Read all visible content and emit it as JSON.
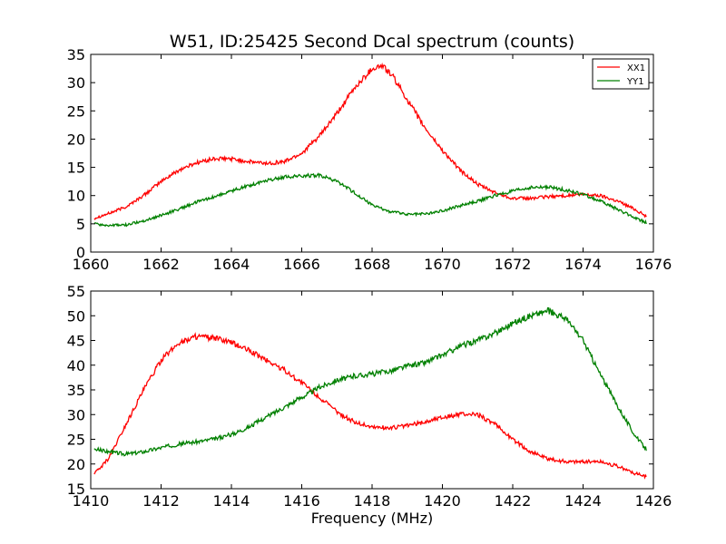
{
  "chart_data": [
    {
      "type": "line",
      "title": "W51, ID:25425 Second Dcal spectrum (counts)",
      "xlabel": "",
      "ylabel": "",
      "xlim": [
        1660,
        1676
      ],
      "ylim": [
        0,
        35
      ],
      "xticks": [
        1660,
        1662,
        1664,
        1666,
        1668,
        1670,
        1672,
        1674,
        1676
      ],
      "yticks": [
        0,
        5,
        10,
        15,
        20,
        25,
        30,
        35
      ],
      "grid": false,
      "legend": "top-right",
      "series": [
        {
          "name": "XX1",
          "color": "#ff0000",
          "x": [
            1660.1,
            1660.5,
            1661,
            1661.5,
            1662,
            1662.5,
            1663,
            1663.5,
            1664,
            1664.5,
            1665,
            1665.5,
            1666,
            1666.5,
            1667,
            1667.5,
            1668,
            1668.3,
            1668.6,
            1669,
            1669.5,
            1670,
            1670.5,
            1671,
            1671.5,
            1672,
            1672.5,
            1673,
            1673.5,
            1674,
            1674.5,
            1675,
            1675.5,
            1675.8
          ],
          "y": [
            6,
            6.8,
            8,
            10,
            12.5,
            14.5,
            15.8,
            16.5,
            16.5,
            16,
            15.7,
            16,
            17.5,
            20.5,
            24.5,
            29,
            32.5,
            33,
            31,
            27,
            22,
            18,
            14.5,
            12,
            10.5,
            9.5,
            9.5,
            9.8,
            10,
            10.2,
            10,
            9,
            7.5,
            6.3
          ]
        },
        {
          "name": "YY1",
          "color": "#008000",
          "x": [
            1660.1,
            1660.5,
            1661,
            1661.5,
            1662,
            1662.5,
            1663,
            1663.5,
            1664,
            1664.5,
            1665,
            1665.5,
            1666,
            1666.5,
            1667,
            1667.5,
            1668,
            1668.5,
            1669,
            1669.5,
            1670,
            1670.5,
            1671,
            1671.5,
            1672,
            1672.5,
            1673,
            1673.5,
            1674,
            1674.5,
            1675,
            1675.5,
            1675.8
          ],
          "y": [
            5,
            4.7,
            4.8,
            5.5,
            6.5,
            7.6,
            8.8,
            9.8,
            10.8,
            11.8,
            12.7,
            13.3,
            13.5,
            13.6,
            12.5,
            10.5,
            8.3,
            7.2,
            6.7,
            6.8,
            7.3,
            8.2,
            9,
            10,
            10.8,
            11.4,
            11.5,
            11,
            10.2,
            9,
            7.5,
            6,
            5.2
          ]
        }
      ]
    },
    {
      "type": "line",
      "title": "",
      "xlabel": "Frequency (MHz)",
      "ylabel": "",
      "xlim": [
        1410,
        1426
      ],
      "ylim": [
        15,
        55
      ],
      "xticks": [
        1410,
        1412,
        1414,
        1416,
        1418,
        1420,
        1422,
        1424,
        1426
      ],
      "yticks": [
        15,
        20,
        25,
        30,
        35,
        40,
        45,
        50,
        55
      ],
      "grid": false,
      "series": [
        {
          "name": "XX1",
          "color": "#ff0000",
          "x": [
            1410.1,
            1410.5,
            1411,
            1411.5,
            1412,
            1412.5,
            1413,
            1413.5,
            1414,
            1414.5,
            1415,
            1415.5,
            1416,
            1416.5,
            1417,
            1417.5,
            1418,
            1418.5,
            1419,
            1419.5,
            1420,
            1420.5,
            1421,
            1421.5,
            1422,
            1422.5,
            1423,
            1423.5,
            1424,
            1424.5,
            1425,
            1425.5,
            1425.8
          ],
          "y": [
            18,
            21,
            28,
            35,
            41,
            44.5,
            45.8,
            45.5,
            44.5,
            43,
            41,
            39,
            36.5,
            33.5,
            30.5,
            28.5,
            27.5,
            27.3,
            27.8,
            28.5,
            29.5,
            30,
            30,
            28,
            25,
            22.5,
            21,
            20.5,
            20.5,
            20.5,
            19.5,
            18,
            17.5
          ]
        },
        {
          "name": "YY1",
          "color": "#008000",
          "x": [
            1410.1,
            1410.5,
            1411,
            1411.5,
            1412,
            1412.5,
            1413,
            1413.5,
            1414,
            1414.5,
            1415,
            1415.5,
            1416,
            1416.5,
            1417,
            1417.5,
            1418,
            1418.5,
            1419,
            1419.5,
            1420,
            1420.5,
            1421,
            1421.5,
            1422,
            1422.5,
            1423,
            1423.5,
            1424,
            1424.5,
            1425,
            1425.5,
            1425.8
          ],
          "y": [
            23,
            22.5,
            22,
            22.5,
            23.3,
            24,
            24.5,
            25,
            26,
            27.5,
            29.5,
            31.5,
            33.5,
            35.5,
            37,
            37.8,
            38.2,
            38.8,
            39.8,
            40.5,
            42,
            43.8,
            45,
            46.5,
            48.5,
            50,
            51,
            49.5,
            45,
            38,
            31.5,
            25.5,
            23
          ]
        }
      ]
    }
  ]
}
